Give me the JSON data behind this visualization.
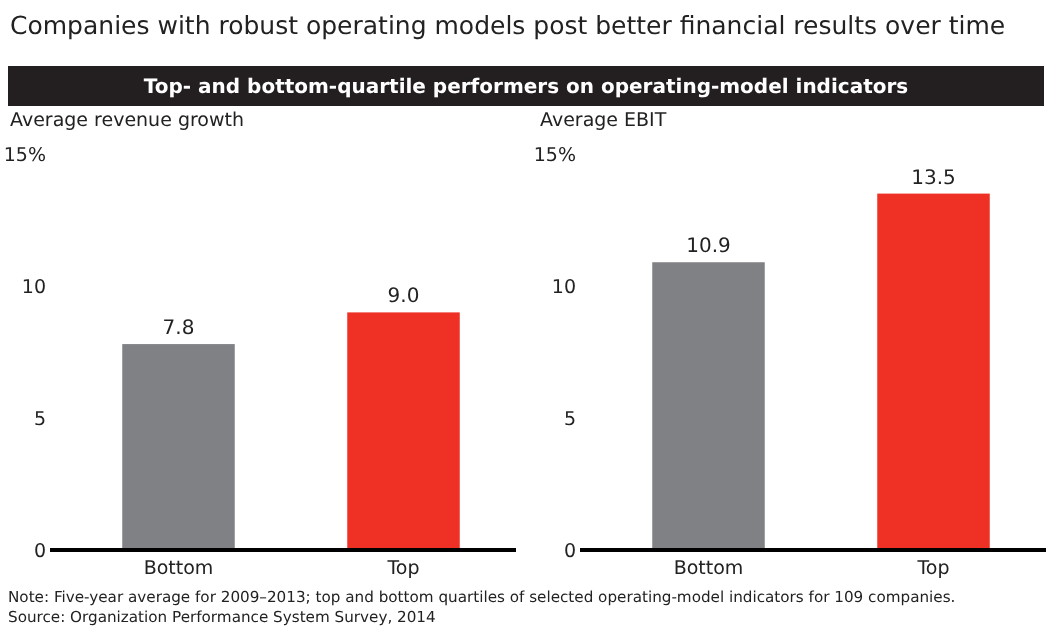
{
  "chart_data": [
    {
      "type": "bar",
      "title": "Companies with robust operating models post better financial results over time",
      "subtitle": "Top- and bottom-quartile performers on operating-model indicators",
      "ylabel": "Average revenue growth",
      "categories": [
        "Bottom",
        "Top"
      ],
      "values": [
        7.8,
        9.0
      ],
      "colors": [
        "#808184",
        "#ee3124"
      ],
      "value_labels": [
        "7.8",
        "9.0"
      ],
      "ylim": [
        0,
        15
      ],
      "yticks": [
        0,
        5,
        10,
        {
          "value": 15,
          "label": "15%"
        }
      ],
      "grid": false,
      "annotations": [
        "Note: Five-year average for 2009–2013; top and bottom quartiles of selected operating-model indicators for 109 companies.",
        "Source: Organization Performance System Survey, 2014"
      ]
    },
    {
      "type": "bar",
      "ylabel": "Average EBIT",
      "categories": [
        "Bottom",
        "Top"
      ],
      "values": [
        10.9,
        13.5
      ],
      "colors": [
        "#808184",
        "#ee3124"
      ],
      "value_labels": [
        "10.9",
        "13.5"
      ],
      "ylim": [
        0,
        15
      ],
      "yticks": [
        0,
        5,
        10,
        {
          "value": 15,
          "label": "15%"
        }
      ],
      "grid": false
    }
  ]
}
